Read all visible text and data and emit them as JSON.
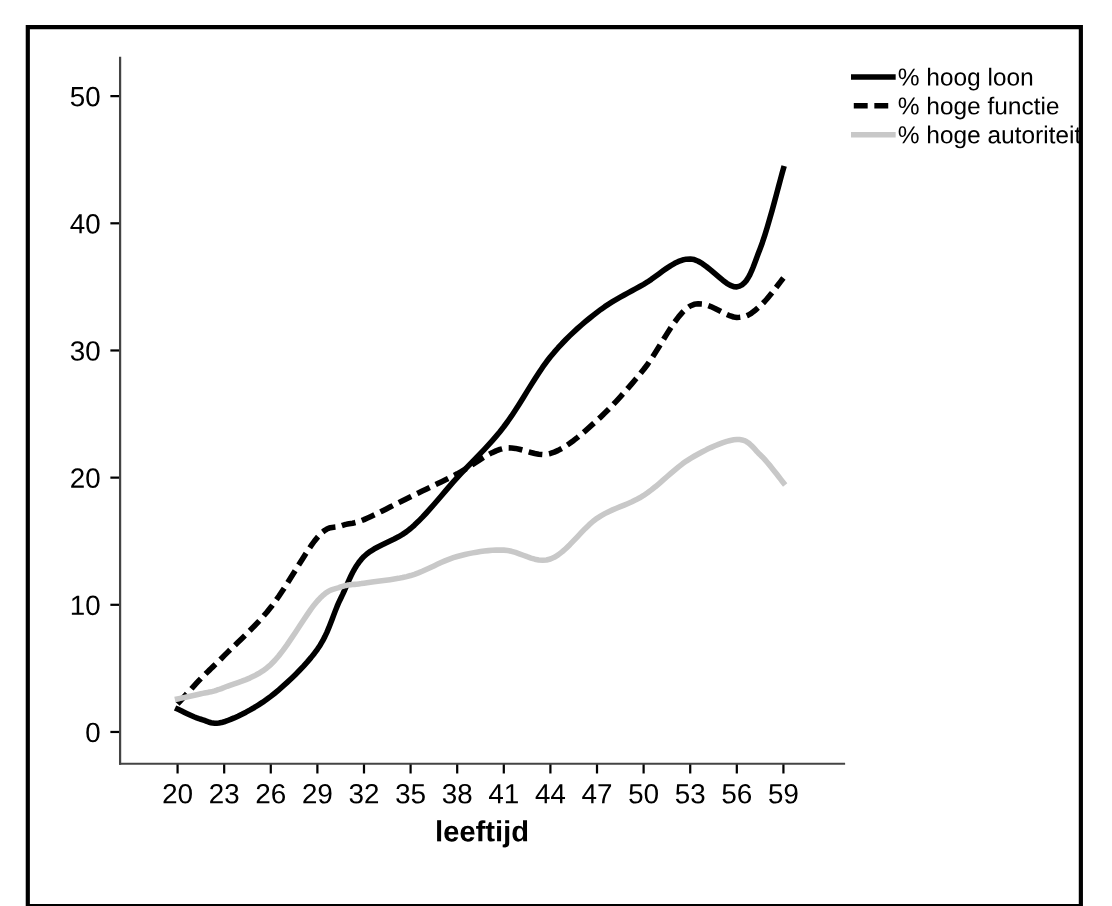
{
  "chart_data": {
    "type": "line",
    "xlabel": "leeftijd",
    "x": [
      20,
      21.5,
      23,
      26,
      29,
      30.5,
      32,
      35,
      38,
      41,
      44,
      47,
      50,
      53,
      56,
      57.5,
      59
    ],
    "series": [
      {
        "name": "% hoog loon",
        "color": "#000000",
        "line_style": "solid",
        "values": [
          1.8,
          1.0,
          0.8,
          2.8,
          6.5,
          10.5,
          13.8,
          16,
          20,
          24,
          29.5,
          33,
          35.2,
          37.2,
          35,
          38,
          44.3
        ]
      },
      {
        "name": "% hoge functie",
        "color": "#000000",
        "line_style": "dashed",
        "values": [
          2.2,
          4.2,
          6,
          9.8,
          15.3,
          16.2,
          16.7,
          18.5,
          20.3,
          22.3,
          21.9,
          24.5,
          28.5,
          33.5,
          32.6,
          33.5,
          35.7
        ]
      },
      {
        "name": "% hoge autoriteit",
        "color": "#c8c8c8",
        "line_style": "solid",
        "values": [
          2.6,
          3.0,
          3.5,
          5.3,
          10.3,
          11.4,
          11.7,
          12.3,
          13.8,
          14.3,
          13.6,
          16.8,
          18.6,
          21.5,
          23,
          21.8,
          19.6
        ]
      }
    ],
    "xlim": [
      16.3,
      62.9
    ],
    "ylim": [
      -2.5,
      53
    ],
    "xticks": [
      20,
      23,
      26,
      29,
      32,
      35,
      38,
      41,
      44,
      47,
      50,
      53,
      56,
      59
    ],
    "yticks": [
      0,
      10,
      20,
      30,
      40,
      50
    ],
    "grid": false,
    "legend": "top right",
    "marker": "none"
  }
}
